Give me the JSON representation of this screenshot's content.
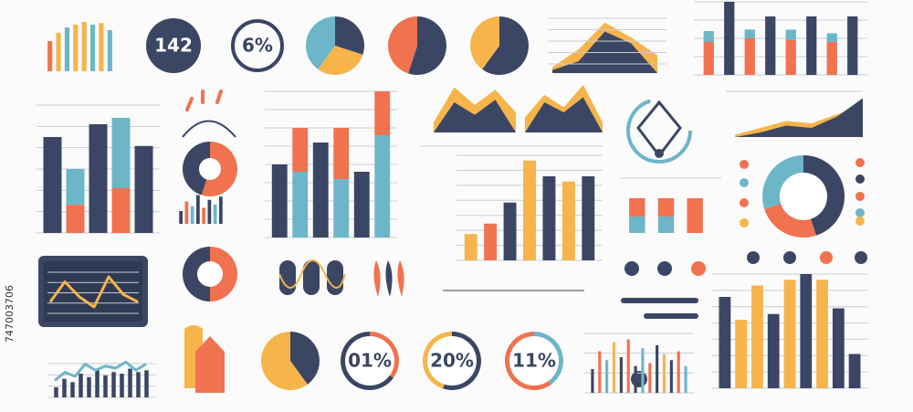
{
  "badges": {
    "total": "142",
    "share": "6%"
  },
  "side_id": "747003706",
  "bar_sets": [
    {
      "series": [
        {
          "colors": [
            "#f0724f",
            "#f6b44a",
            "#6db6c9",
            "#f6b44a",
            "#f6b44a",
            "#6db6c9",
            "#f6b44a",
            "#6db6c9"
          ],
          "values": [
            55,
            70,
            80,
            85,
            90,
            85,
            88,
            75
          ]
        }
      ],
      "max": 100
    },
    {
      "series": [
        {
          "colors": [
            "#f0724f",
            "#3a4663",
            "#f0724f",
            "#3a4663",
            "#f0724f",
            "#3a4663",
            "#f0724f",
            "#3a4663"
          ],
          "values": [
            45,
            30,
            50,
            20,
            48,
            25,
            45,
            20
          ]
        },
        {
          "colors": [
            "#6db6c9",
            "#3a4663",
            "#6db6c9",
            "#3a4663",
            "#6db6c9",
            "#3a4663",
            "#6db6c9",
            "#3a4663"
          ],
          "values": [
            15,
            70,
            12,
            60,
            14,
            55,
            12,
            60
          ]
        }
      ],
      "max": 100
    },
    {
      "series": [
        {
          "colors": [
            "#3a4663",
            "#f0724f",
            "#3a4663",
            "#f0724f",
            "#3a4663"
          ],
          "values": [
            75,
            22,
            85,
            35,
            68
          ]
        },
        {
          "colors": [
            "#6db6c9",
            "#6db6c9",
            "#6db6c9",
            "#6db6c9",
            "#6db6c9"
          ],
          "values": [
            0,
            28,
            0,
            55,
            0
          ]
        }
      ],
      "max": 100
    },
    {
      "series": [
        {
          "colors": [
            "#3a4663",
            "#f0724f",
            "#6db6c9",
            "#3a4663",
            "#f0724f",
            "#3a4663",
            "#6db6c9",
            "#3a4663"
          ],
          "values": [
            40,
            70,
            55,
            90,
            50,
            75,
            60,
            85
          ]
        }
      ],
      "max": 100
    },
    {
      "series": [
        {
          "colors": [
            "#3a4663",
            "#6db6c9",
            "#3a4663",
            "#6db6c9",
            "#3a4663",
            "#6db6c9"
          ],
          "values": [
            50,
            45,
            65,
            40,
            45,
            70
          ]
        },
        {
          "colors": [
            "#f0724f",
            "#f0724f",
            "#f0724f",
            "#f0724f",
            "#f0724f",
            "#f0724f"
          ],
          "values": [
            0,
            30,
            0,
            35,
            0,
            30
          ]
        }
      ],
      "max": 100
    },
    {
      "series": [
        {
          "colors": [
            "#f6b44a",
            "#f0724f",
            "#3a4663",
            "#f6b44a",
            "#3a4663",
            "#f6b44a",
            "#3a4663"
          ],
          "values": [
            25,
            35,
            55,
            95,
            80,
            75,
            80
          ]
        }
      ],
      "max": 100
    },
    {
      "series": [
        {
          "colors": [
            "#6db6c9",
            "#6db6c9",
            "#f0724f"
          ],
          "values": [
            45,
            45,
            95
          ]
        },
        {
          "colors": [
            "#f0724f",
            "#f0724f",
            "#f0724f"
          ],
          "values": [
            50,
            50,
            0
          ]
        }
      ],
      "max": 100
    },
    {
      "series": [
        {
          "colors": [
            "#3a4663",
            "#f0724f",
            "#6db6c9",
            "#f6b44a",
            "#3a4663",
            "#f0724f",
            "#3a4663",
            "#6db6c9",
            "#f0724f",
            "#3a4663",
            "#f6b44a",
            "#3a4663",
            "#f0724f",
            "#6db6c9"
          ],
          "values": [
            40,
            70,
            55,
            85,
            60,
            90,
            45,
            75,
            50,
            80,
            65,
            55,
            70,
            45
          ]
        }
      ],
      "max": 100
    },
    {
      "series": [
        {
          "colors": [
            "#3a4663",
            "#f6b44a",
            "#f6b44a",
            "#3a4663",
            "#f6b44a",
            "#3a4663",
            "#f6b44a",
            "#3a4663",
            "#3a4663"
          ],
          "values": [
            80,
            60,
            90,
            65,
            95,
            100,
            95,
            70,
            30
          ]
        }
      ],
      "max": 100
    },
    {
      "series": [
        {
          "colors": [
            "#3a4663",
            "#3a4663",
            "#3a4663",
            "#3a4663",
            "#3a4663",
            "#3a4663",
            "#3a4663",
            "#3a4663",
            "#3a4663",
            "#3a4663",
            "#3a4663",
            "#3a4663"
          ],
          "values": [
            30,
            55,
            45,
            70,
            60,
            80,
            65,
            75,
            70,
            85,
            75,
            80
          ]
        }
      ],
      "max": 100
    }
  ],
  "pies": [
    {
      "values": [
        30,
        30,
        40
      ],
      "colors": [
        "#3a4663",
        "#f6b44a",
        "#6db6c9"
      ]
    },
    {
      "values": [
        55,
        45
      ],
      "colors": [
        "#3a4663",
        "#f0724f"
      ]
    },
    {
      "values": [
        60,
        40
      ],
      "colors": [
        "#3a4663",
        "#f6b44a"
      ]
    },
    {
      "values": [
        55,
        45
      ],
      "colors": [
        "#f0724f",
        "#3a4663"
      ]
    },
    {
      "values": [
        50,
        50
      ],
      "colors": [
        "#f0724f",
        "#3a4663"
      ]
    },
    {
      "values": [
        40,
        60
      ],
      "colors": [
        "#3a4663",
        "#f6b44a"
      ]
    },
    {
      "values": [
        45,
        25,
        30
      ],
      "colors": [
        "#3a4663",
        "#f0724f",
        "#6db6c9"
      ]
    }
  ],
  "rings": [
    {
      "label": "01%",
      "values": [
        35,
        65
      ],
      "colors": [
        "#f0724f",
        "#3a4663"
      ]
    },
    {
      "label": "20%",
      "values": [
        55,
        45
      ],
      "colors": [
        "#3a4663",
        "#f6b44a"
      ]
    },
    {
      "label": "11%",
      "values": [
        40,
        60
      ],
      "colors": [
        "#6db6c9",
        "#f0724f"
      ]
    }
  ],
  "areas": [
    {
      "series": [
        {
          "color": "#f6b44a",
          "values": [
            10,
            40,
            85,
            60,
            30
          ]
        },
        {
          "color": "#3a4663",
          "values": [
            5,
            20,
            70,
            50,
            0
          ]
        }
      ],
      "max": 100
    },
    {
      "series": [
        {
          "color": "#f6b44a",
          "values": [
            20,
            90,
            55,
            85,
            40
          ]
        },
        {
          "color": "#3a4663",
          "values": [
            0,
            60,
            35,
            65,
            0
          ]
        }
      ],
      "max": 100
    },
    {
      "series": [
        {
          "color": "#f6b44a",
          "values": [
            30,
            75,
            50,
            95,
            20
          ]
        },
        {
          "color": "#3a4663",
          "values": [
            0,
            60,
            40,
            70,
            0
          ]
        }
      ],
      "max": 100
    },
    {
      "series": [
        {
          "color": "#f6b44a",
          "values": [
            5,
            20,
            35,
            30,
            50,
            65
          ]
        },
        {
          "color": "#3a4663",
          "values": [
            0,
            10,
            25,
            20,
            45,
            85
          ]
        }
      ],
      "max": 100
    }
  ],
  "lines": [
    {
      "color": "#f6b44a",
      "values": [
        30,
        70,
        40,
        20,
        80,
        45,
        30
      ],
      "max": 100
    },
    {
      "color": "#6db6c9",
      "values": [
        30,
        50,
        40,
        70,
        55,
        65,
        60,
        75,
        55,
        70
      ],
      "max": 100
    }
  ]
}
